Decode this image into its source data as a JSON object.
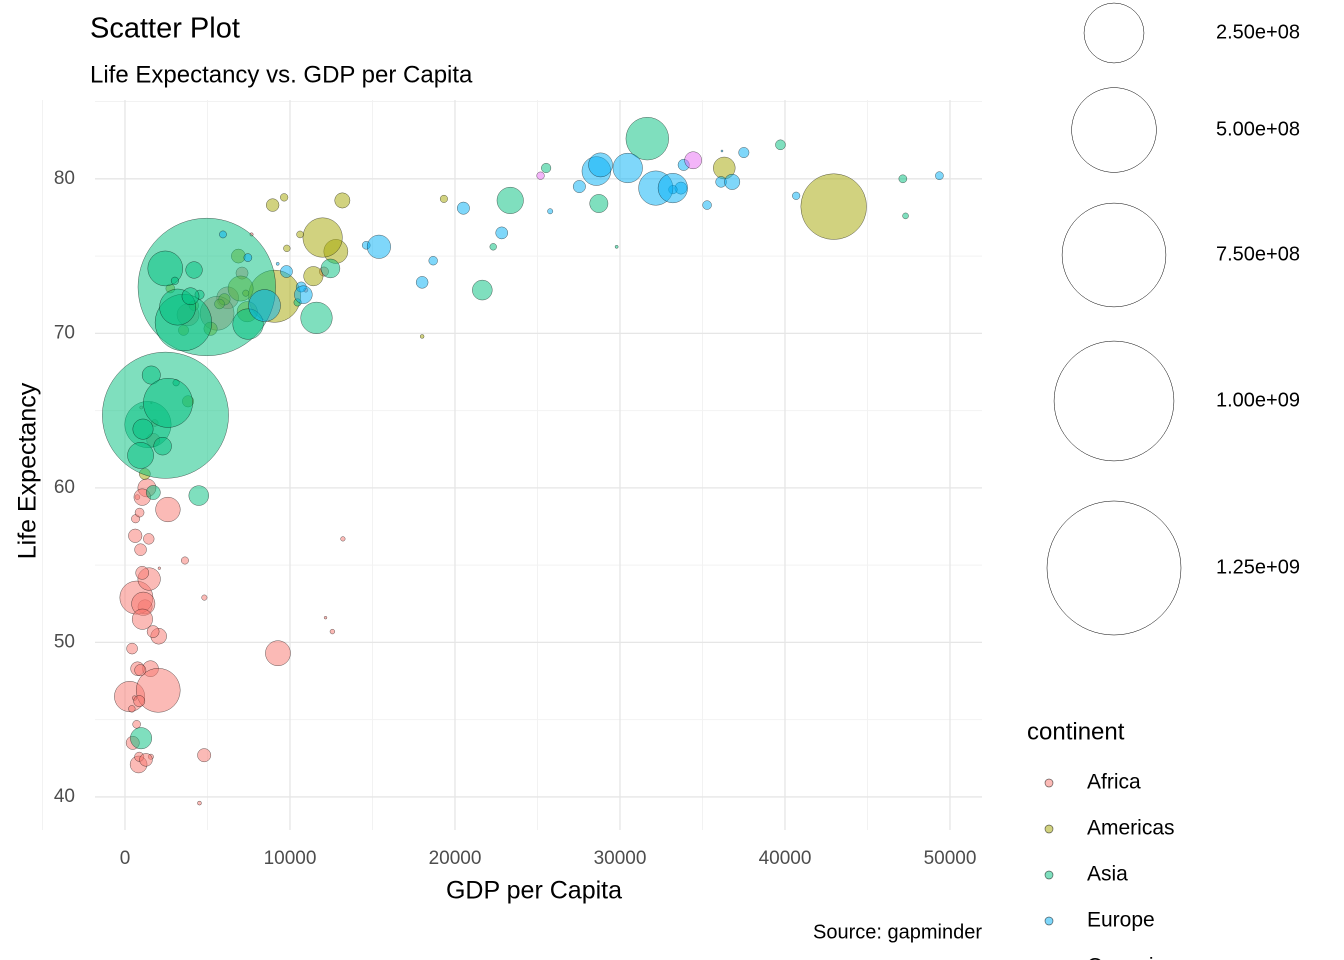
{
  "chart_data": {
    "type": "scatter",
    "title": "Scatter Plot",
    "subtitle": "Life Expectancy vs. GDP per Capita",
    "x_label": "GDP per Capita",
    "y_label": "Life Expectancy",
    "caption": "Source: gapminder",
    "legend_title": "continent",
    "grid": true,
    "xlim": [
      -1818,
      51940
    ],
    "ylim": [
      37.86,
      85.1
    ],
    "xticks": [
      0,
      10000,
      20000,
      30000,
      40000,
      50000
    ],
    "yticks": [
      40,
      50,
      60,
      70,
      80
    ],
    "size_ticks": [
      {
        "value": 250000000,
        "label": "2.50e+08"
      },
      {
        "value": 500000000,
        "label": "5.00e+08"
      },
      {
        "value": 750000000,
        "label": "7.50e+08"
      },
      {
        "value": 1000000000,
        "label": "1.00e+09"
      },
      {
        "value": 1250000000,
        "label": "1.25e+09"
      }
    ],
    "series": [
      {
        "name": "Africa",
        "color": "#F8766D",
        "x": [
          6223,
          4797,
          1441,
          12570,
          1217,
          430,
          2042,
          706,
          1704,
          986,
          278,
          3633,
          1545,
          2082,
          5581,
          12154,
          641,
          691,
          13206,
          753,
          1328,
          943,
          579,
          1463,
          1569,
          415,
          12057,
          1045,
          759,
          1043,
          1803,
          10957,
          3820,
          824,
          4811,
          620,
          2014,
          7670,
          863,
          1598,
          1712,
          863,
          926,
          9270,
          2602,
          4513,
          1107,
          883,
          7093,
          1056,
          1271,
          470
        ],
        "values": [
          72.3,
          42.7,
          56.7,
          50.7,
          52.3,
          49.6,
          50.4,
          44.7,
          50.7,
          65.2,
          46.5,
          55.3,
          48.3,
          54.8,
          71.3,
          51.6,
          58.0,
          52.9,
          56.7,
          59.4,
          60.0,
          56.0,
          46.4,
          54.1,
          42.6,
          45.7,
          74.0,
          59.4,
          48.3,
          54.5,
          64.2,
          72.8,
          71.2,
          42.1,
          52.9,
          56.9,
          46.9,
          76.4,
          46.2,
          65.5,
          63.1,
          42.6,
          48.2,
          49.3,
          58.6,
          39.6,
          52.5,
          58.4,
          73.9,
          51.5,
          42.4,
          43.5
        ],
        "size": [
          33300000,
          12400000,
          8100000,
          1600000,
          14300000,
          8400000,
          17700000,
          4400000,
          10200000,
          710000,
          64600000,
          3800000,
          18000000,
          500000,
          80300000,
          550000,
          4900000,
          76500000,
          1450000,
          1690000,
          22900000,
          9900000,
          1470000,
          35600000,
          2000000,
          3200000,
          6000000,
          19200000,
          13300000,
          12000000,
          3300000,
          1250000,
          33800000,
          19950000,
          2060000,
          12900000,
          135000000,
          800000,
          8900000,
          200000,
          12300000,
          6100000,
          9100000,
          44000000,
          42300000,
          1100000,
          38100000,
          5700000,
          10300000,
          29200000,
          11700000,
          12300000
        ]
      },
      {
        "name": "Americas",
        "color": "#A3A500",
        "x": [
          12779,
          3822,
          9066,
          36319,
          13172,
          7007,
          9645,
          8948,
          6025,
          6873,
          5728,
          5186,
          1202,
          3548,
          7321,
          11978,
          2749,
          9809,
          4173,
          7409,
          19329,
          18009,
          42952,
          10611,
          11416
        ],
        "values": [
          75.3,
          65.6,
          72.4,
          80.7,
          78.6,
          72.9,
          78.8,
          78.3,
          72.2,
          75.0,
          71.9,
          70.3,
          60.9,
          70.2,
          72.6,
          76.2,
          72.9,
          75.5,
          71.8,
          71.4,
          78.7,
          69.8,
          78.2,
          76.4,
          73.7
        ],
        "size": [
          40300000,
          9100000,
          190000000,
          33400000,
          16300000,
          44200000,
          4100000,
          11400000,
          9300000,
          13800000,
          6900000,
          12600000,
          8500000,
          7500000,
          2800000,
          108700000,
          5700000,
          3200000,
          6700000,
          28700000,
          3900000,
          1060000,
          301000000,
          3400000,
          26100000
        ]
      },
      {
        "name": "Asia",
        "color": "#00BF7D",
        "x": [
          975,
          29796,
          1391,
          1714,
          4959,
          39725,
          2452,
          3541,
          11606,
          4471,
          25523,
          31656,
          4519,
          1593,
          23348,
          47307,
          10461,
          12452,
          3096,
          944,
          1091,
          22316,
          2606,
          3190,
          21655,
          47143,
          3970,
          4185,
          28718,
          7458,
          2442,
          3025,
          2281
        ],
        "values": [
          43.8,
          75.6,
          64.1,
          59.7,
          73.0,
          82.2,
          64.7,
          70.7,
          71.0,
          59.5,
          80.7,
          82.6,
          72.5,
          67.3,
          78.6,
          77.6,
          72.0,
          74.2,
          66.8,
          62.1,
          63.8,
          75.6,
          65.5,
          71.7,
          72.8,
          80.0,
          72.4,
          74.1,
          78.4,
          70.6,
          74.2,
          73.4,
          62.7
        ],
        "size": [
          31900000,
          700000,
          150000000,
          14100000,
          1318700000,
          6980000,
          1110000000,
          223500000,
          69500000,
          27500000,
          6400000,
          127500000,
          6050000,
          23300000,
          49000000,
          2500000,
          3900000,
          24800000,
          2900000,
          47800000,
          28900000,
          3200000,
          169000000,
          91100000,
          27600000,
          4550000,
          20400000,
          19300000,
          23200000,
          65100000,
          85300000,
          4000000,
          22200000
        ]
      },
      {
        "name": "Europe",
        "color": "#00B0F6",
        "x": [
          5937,
          36126,
          33693,
          7446,
          10681,
          14619,
          22833,
          35278,
          33207,
          30470,
          32170,
          27538,
          18009,
          36181,
          40676,
          28570,
          9254,
          36798,
          49357,
          15390,
          20510,
          10808,
          9787,
          18678,
          25768,
          28821,
          33860,
          37506,
          8458,
          33203
        ],
        "values": [
          76.4,
          79.8,
          79.4,
          74.9,
          73.0,
          75.7,
          76.5,
          78.3,
          79.3,
          80.7,
          79.4,
          79.5,
          73.3,
          81.8,
          78.9,
          80.5,
          74.5,
          79.8,
          80.2,
          75.6,
          78.1,
          72.5,
          74.0,
          74.7,
          77.9,
          80.9,
          80.9,
          81.7,
          71.8,
          79.4
        ],
        "size": [
          3600000,
          8200000,
          10400000,
          4550000,
          7300000,
          4500000,
          10200000,
          5500000,
          5200000,
          61100000,
          82400000,
          10700000,
          9960000,
          300000,
          4100000,
          58100000,
          680000,
          16600000,
          4600000,
          38500000,
          10600000,
          22300000,
          10200000,
          5400000,
          2000000,
          40400000,
          9000000,
          7550000,
          71200000,
          60800000
        ]
      },
      {
        "name": "Oceania",
        "color": "#E76BF3",
        "x": [
          34435,
          25185
        ],
        "values": [
          81.2,
          80.2
        ],
        "size": [
          20400000,
          4100000
        ]
      }
    ]
  }
}
